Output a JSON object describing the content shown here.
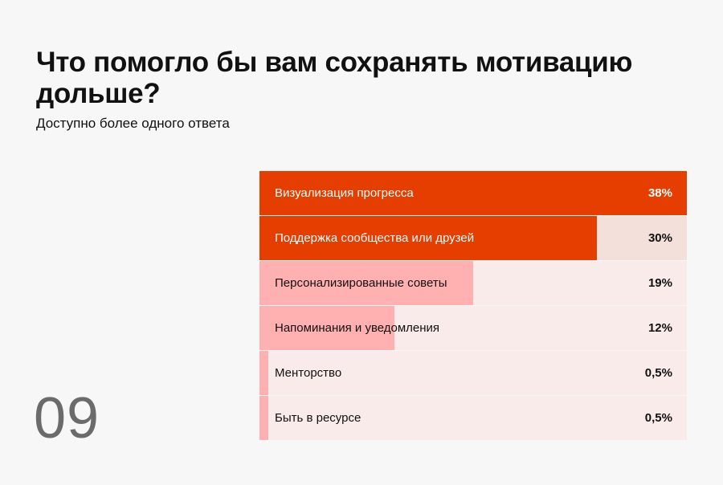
{
  "title": "Что помогло бы вам сохранять мотивацию дольше?",
  "subtitle": "Доступно более одного ответа",
  "page_number": "09",
  "colors": {
    "dark_fill": "#e53e00",
    "dark_bg": "#f4e0da",
    "light_fill": "#ffb0b0",
    "light_bg": "#f8ebe9",
    "text_on_dark": "#ffffff",
    "text_default": "#111111"
  },
  "chart_data": {
    "type": "bar",
    "orientation": "horizontal",
    "categories": [
      "Визуализация прогресса",
      "Поддержка сообщества или друзей",
      "Персонализированные советы",
      "Напоминания и уведомления",
      "Менторство",
      "Быть в ресурсе"
    ],
    "values": [
      38,
      30,
      19,
      12,
      0.5,
      0.5
    ],
    "value_labels": [
      "38%",
      "30%",
      "19%",
      "12%",
      "0,5%",
      "0,5%"
    ],
    "unit": "%",
    "xlim": [
      0,
      38
    ]
  }
}
